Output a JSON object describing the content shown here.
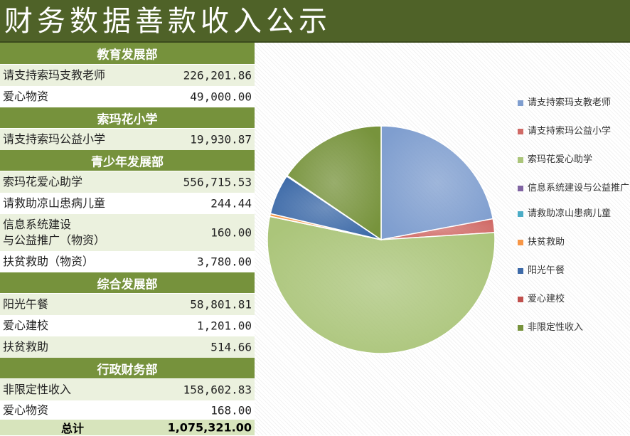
{
  "title": "财务数据善款收入公示",
  "sections": [
    {
      "header": "教育发展部",
      "items": [
        {
          "label": "请支持索玛支教老师",
          "value": "226,201.86"
        },
        {
          "label": "爱心物资",
          "value": "49,000.00"
        }
      ]
    },
    {
      "header": "索玛花小学",
      "items": [
        {
          "label": "请支持索玛公益小学",
          "value": "19,930.87"
        }
      ]
    },
    {
      "header": "青少年发展部",
      "items": [
        {
          "label": "索玛花爱心助学",
          "value": "556,715.53"
        },
        {
          "label": "请救助凉山患病儿童",
          "value": "244.44"
        },
        {
          "label": "信息系统建设\n与公益推广（物资）",
          "value": "160.00"
        },
        {
          "label": "扶贫救助（物资）",
          "value": "3,780.00"
        }
      ]
    },
    {
      "header": "综合发展部",
      "items": [
        {
          "label": "阳光午餐",
          "value": "58,801.81"
        },
        {
          "label": "爱心建校",
          "value": "1,201.00"
        },
        {
          "label": "扶贫救助",
          "value": "514.66"
        }
      ]
    },
    {
      "header": "行政财务部",
      "items": [
        {
          "label": "非限定性收入",
          "value": "158,602.83"
        },
        {
          "label": "爱心物资",
          "value": "168.00"
        }
      ]
    }
  ],
  "total": {
    "label": "总计",
    "value": "1,075,321.00"
  },
  "chart_data": {
    "type": "pie",
    "title": "",
    "legend_position": "right",
    "slices": [
      {
        "name": "请支持索玛支教老师",
        "value": 226201.86,
        "color": "#7f9ecf"
      },
      {
        "name": "请支持索玛公益小学",
        "value": 19930.87,
        "color": "#d06a66"
      },
      {
        "name": "索玛花爱心助学",
        "value": 556715.53,
        "color": "#abc57a"
      },
      {
        "name": "信息系统建设与公益推广",
        "value": 160.0,
        "color": "#8064a2"
      },
      {
        "name": "请救助凉山患病儿童",
        "value": 244.44,
        "color": "#4bacc6"
      },
      {
        "name": "扶贫救助",
        "value": 3780.0,
        "color": "#f79646"
      },
      {
        "name": "阳光午餐",
        "value": 58801.81,
        "color": "#3d6aa8"
      },
      {
        "name": "爱心建校",
        "value": 1201.0,
        "color": "#c0504d"
      },
      {
        "name": "非限定性收入",
        "value": 158602.83,
        "color": "#77933c"
      }
    ]
  }
}
